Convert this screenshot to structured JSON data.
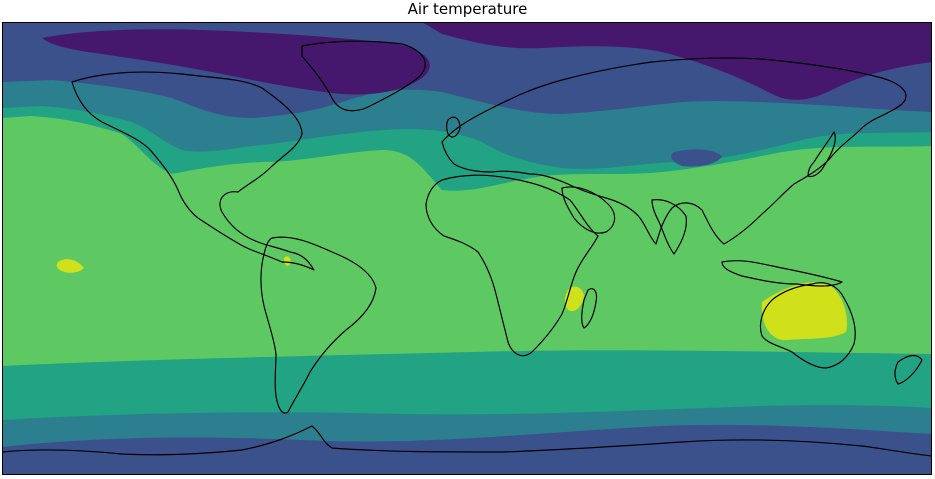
{
  "title": "Air temperature",
  "map": {
    "projection": "plate-carree",
    "extent_lon": [
      -180,
      180
    ],
    "extent_lat": [
      -90,
      90
    ],
    "colormap": "viridis",
    "levels": [
      {
        "name": "level-1",
        "color": "#46186d"
      },
      {
        "name": "level-2",
        "color": "#3b518b"
      },
      {
        "name": "level-3",
        "color": "#2c7f8e"
      },
      {
        "name": "level-4",
        "color": "#22a384"
      },
      {
        "name": "level-5",
        "color": "#5ec962"
      },
      {
        "name": "level-6",
        "color": "#d0e11c"
      }
    ],
    "coastline_color": "#000000"
  }
}
